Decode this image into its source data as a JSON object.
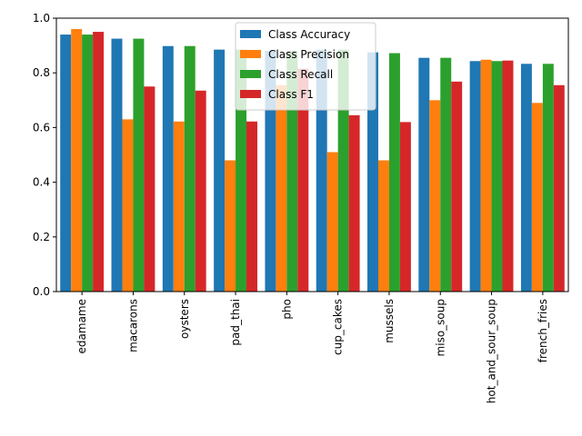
{
  "chart_data": {
    "type": "bar",
    "title": "",
    "xlabel": "",
    "ylabel": "",
    "ylim": [
      0,
      1.0
    ],
    "yticks": [
      0.0,
      0.2,
      0.4,
      0.6,
      0.8,
      1.0
    ],
    "ytick_labels": [
      "0.0",
      "0.2",
      "0.4",
      "0.6",
      "0.8",
      "1.0"
    ],
    "grid": false,
    "legend_position": "top-center",
    "categories": [
      "edamame",
      "macarons",
      "oysters",
      "pad_thai",
      "pho",
      "cup_cakes",
      "mussels",
      "miso_soup",
      "hot_and_sour_soup",
      "french_fries"
    ],
    "series": [
      {
        "name": "Class Accuracy",
        "color": "#1f77b4",
        "values": [
          0.94,
          0.925,
          0.898,
          0.885,
          0.88,
          0.885,
          0.875,
          0.855,
          0.843,
          0.833
        ]
      },
      {
        "name": "Class Precision",
        "color": "#ff7f0e",
        "values": [
          0.96,
          0.63,
          0.622,
          0.48,
          0.755,
          0.51,
          0.48,
          0.7,
          0.848,
          0.69
        ]
      },
      {
        "name": "Class Recall",
        "color": "#2ca02c",
        "values": [
          0.94,
          0.925,
          0.898,
          0.885,
          0.88,
          0.885,
          0.872,
          0.855,
          0.843,
          0.833
        ]
      },
      {
        "name": "Class F1",
        "color": "#d62728",
        "values": [
          0.95,
          0.75,
          0.735,
          0.622,
          0.815,
          0.645,
          0.62,
          0.768,
          0.845,
          0.755
        ]
      }
    ]
  }
}
